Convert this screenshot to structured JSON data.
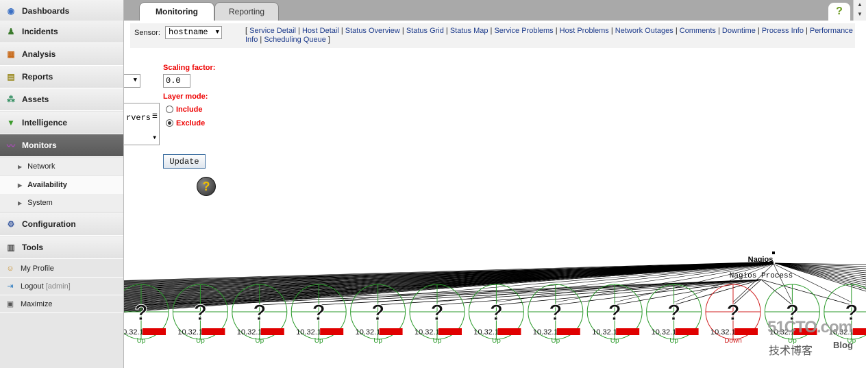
{
  "sidebar": {
    "items": [
      {
        "label": "Dashboards",
        "icon": "globe-icon",
        "color": "#3a6fc4"
      },
      {
        "label": "Incidents",
        "icon": "people-icon",
        "color": "#3a7a2c"
      },
      {
        "label": "Analysis",
        "icon": "chart-icon",
        "color": "#c86a1a"
      },
      {
        "label": "Reports",
        "icon": "report-icon",
        "color": "#9a8a20"
      },
      {
        "label": "Assets",
        "icon": "network-icon",
        "color": "#2a8a5a"
      },
      {
        "label": "Intelligence",
        "icon": "filter-icon",
        "color": "#3a9a2a"
      },
      {
        "label": "Monitors",
        "icon": "monitor-icon",
        "color": "#b04abf"
      }
    ],
    "sub_items": [
      {
        "label": "Network"
      },
      {
        "label": "Availability"
      },
      {
        "label": "System"
      }
    ],
    "bottom_items": [
      {
        "label": "Configuration",
        "icon": "config-icon"
      },
      {
        "label": "Tools",
        "icon": "tools-icon"
      }
    ],
    "links": {
      "profile": "My Profile",
      "logout": "Logout",
      "logout_user": "[admin]",
      "maximize": "Maximize"
    }
  },
  "tabs": {
    "monitoring": "Monitoring",
    "reporting": "Reporting",
    "help": "?"
  },
  "nav": {
    "sensor_label": "Sensor:",
    "sensor_value": "hostname",
    "open_bracket": "[",
    "close_bracket": "]",
    "links": [
      "Service Detail",
      "Host Detail",
      "Status Overview",
      "Status Grid",
      "Status Map",
      "Service Problems",
      "Host Problems",
      "Network Outages",
      "Comments",
      "Downtime",
      "Process Info",
      "Performance Info",
      "Scheduling Queue"
    ]
  },
  "controls": {
    "scaling_label": "Scaling factor:",
    "scaling_value": "0.0",
    "layer_mode_label": "Layer mode:",
    "include_label": "Include",
    "exclude_label": "Exclude",
    "selected_mode": "Exclude",
    "layer_list_partial": "rvers",
    "update_label": "Update",
    "help_glyph": "?"
  },
  "map": {
    "root_label": "Nagios",
    "process_label": "Nagios Process",
    "unknown_glyph": "?",
    "colors": {
      "up": "#2a9a2a",
      "down": "#d02020",
      "redact": "#e00000",
      "lines": "#000000"
    },
    "hosts": [
      {
        "label": "10.32.1",
        "status": "Up"
      },
      {
        "label": "10.32.1",
        "status": "Up"
      },
      {
        "label": "10.32.1",
        "status": "Up"
      },
      {
        "label": "10.32.1",
        "status": "Up"
      },
      {
        "label": "10.32.1",
        "status": "Up"
      },
      {
        "label": "10.32.1",
        "status": "Up"
      },
      {
        "label": "10.32.1",
        "status": "Up"
      },
      {
        "label": "10.32.1",
        "status": "Up"
      },
      {
        "label": "10.32.1",
        "status": "Up"
      },
      {
        "label": "10.32.1",
        "status": "Up"
      },
      {
        "label": "10.32.1",
        "status": "Down"
      },
      {
        "label": "10.32.1",
        "status": "Up"
      },
      {
        "label": "10.32.1",
        "status": "Up"
      }
    ]
  },
  "watermark": {
    "site": "51CTO.com",
    "sub": "技术博客",
    "blog": "Blog"
  }
}
